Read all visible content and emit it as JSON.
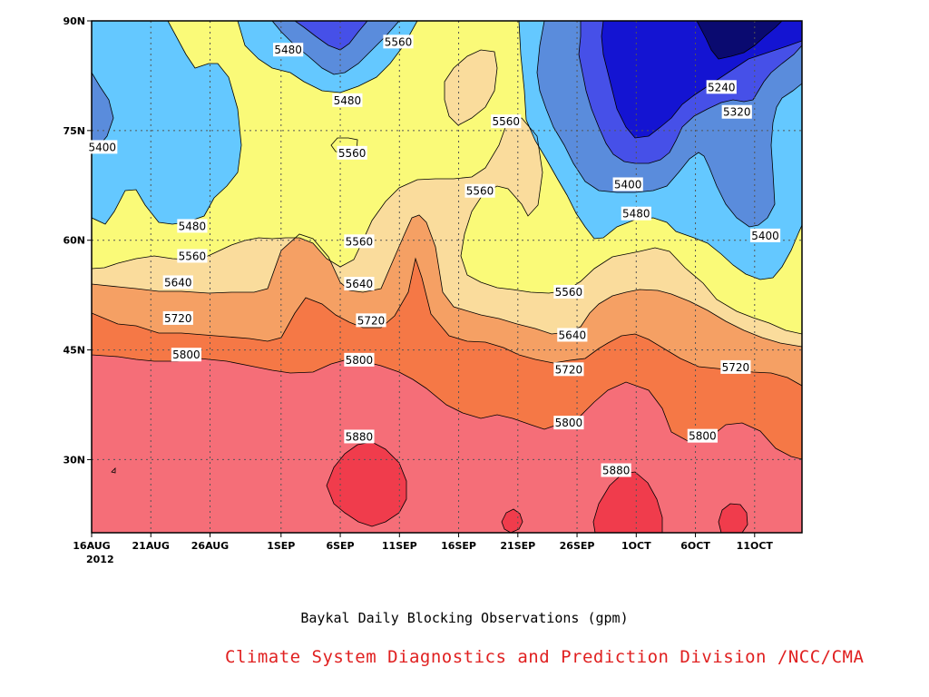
{
  "chart_data": {
    "type": "contour",
    "title": "Baykal Daily Blocking Observations (gpm)",
    "credit": "Climate System Diagnostics and Prediction Division /NCC/CMA",
    "units": "gpm",
    "x_axis": {
      "start": "2012-08-16",
      "end": "2012-10-15",
      "ticks": [
        {
          "label": "16AUG",
          "day": 0
        },
        {
          "label": "21AUG",
          "day": 5
        },
        {
          "label": "26AUG",
          "day": 10
        },
        {
          "label": "1SEP",
          "day": 16
        },
        {
          "label": "6SEP",
          "day": 21
        },
        {
          "label": "11SEP",
          "day": 26
        },
        {
          "label": "16SEP",
          "day": 31
        },
        {
          "label": "21SEP",
          "day": 36
        },
        {
          "label": "26SEP",
          "day": 41
        },
        {
          "label": "1OCT",
          "day": 46
        },
        {
          "label": "6OCT",
          "day": 51
        },
        {
          "label": "11OCT",
          "day": 56
        }
      ],
      "year_label": "2012"
    },
    "y_axis": {
      "range": [
        20,
        90
      ],
      "ticks": [
        {
          "label": "30N",
          "value": 30
        },
        {
          "label": "45N",
          "value": 45
        },
        {
          "label": "60N",
          "value": 60
        },
        {
          "label": "75N",
          "value": 75
        },
        {
          "label": "90N",
          "value": 90
        }
      ]
    },
    "grid": true,
    "contour_levels": [
      5160,
      5240,
      5320,
      5400,
      5480,
      5560,
      5640,
      5720,
      5800,
      5880
    ],
    "colors": {
      "lt5160": "#0a0a70",
      "5160": "#1414d2",
      "5240": "#4650e8",
      "5320": "#5a8cdc",
      "5400": "#64c8ff",
      "5480": "#fafa78",
      "5560": "#fadc9c",
      "5640": "#f5a064",
      "5720": "#f57846",
      "5800": "#f56e78",
      "5880": "#f03c4c"
    },
    "contour_labels": [
      {
        "text": "5560",
        "day": 25.9,
        "lat": 87.1
      },
      {
        "text": "5480",
        "day": 16.6,
        "lat": 86.0
      },
      {
        "text": "5240",
        "day": 53.2,
        "lat": 80.9
      },
      {
        "text": "5480",
        "day": 21.6,
        "lat": 79.1
      },
      {
        "text": "5320",
        "day": 54.5,
        "lat": 77.5
      },
      {
        "text": "5560",
        "day": 35.0,
        "lat": 76.2
      },
      {
        "text": "5400",
        "day": 0.9,
        "lat": 72.7
      },
      {
        "text": "5560",
        "day": 22.0,
        "lat": 71.9
      },
      {
        "text": "5400",
        "day": 45.3,
        "lat": 67.6
      },
      {
        "text": "5560",
        "day": 32.8,
        "lat": 66.7
      },
      {
        "text": "5480",
        "day": 46.0,
        "lat": 63.6
      },
      {
        "text": "5480",
        "day": 8.5,
        "lat": 61.9
      },
      {
        "text": "5400",
        "day": 56.9,
        "lat": 60.6
      },
      {
        "text": "5560",
        "day": 22.6,
        "lat": 59.8
      },
      {
        "text": "5560",
        "day": 8.5,
        "lat": 57.8
      },
      {
        "text": "5640",
        "day": 7.3,
        "lat": 54.2
      },
      {
        "text": "5640",
        "day": 22.6,
        "lat": 54.0
      },
      {
        "text": "5560",
        "day": 40.3,
        "lat": 52.9
      },
      {
        "text": "5720",
        "day": 7.3,
        "lat": 49.3
      },
      {
        "text": "5720",
        "day": 23.6,
        "lat": 49.0
      },
      {
        "text": "5640",
        "day": 40.6,
        "lat": 47.0
      },
      {
        "text": "5800",
        "day": 8.0,
        "lat": 44.3
      },
      {
        "text": "5800",
        "day": 22.6,
        "lat": 43.6
      },
      {
        "text": "5720",
        "day": 54.4,
        "lat": 42.6
      },
      {
        "text": "5720",
        "day": 40.3,
        "lat": 42.3
      },
      {
        "text": "5800",
        "day": 40.3,
        "lat": 35.0
      },
      {
        "text": "5800",
        "day": 51.6,
        "lat": 33.2
      },
      {
        "text": "5880",
        "day": 22.6,
        "lat": 33.1
      },
      {
        "text": "5880",
        "day": 44.3,
        "lat": 28.5
      }
    ]
  }
}
